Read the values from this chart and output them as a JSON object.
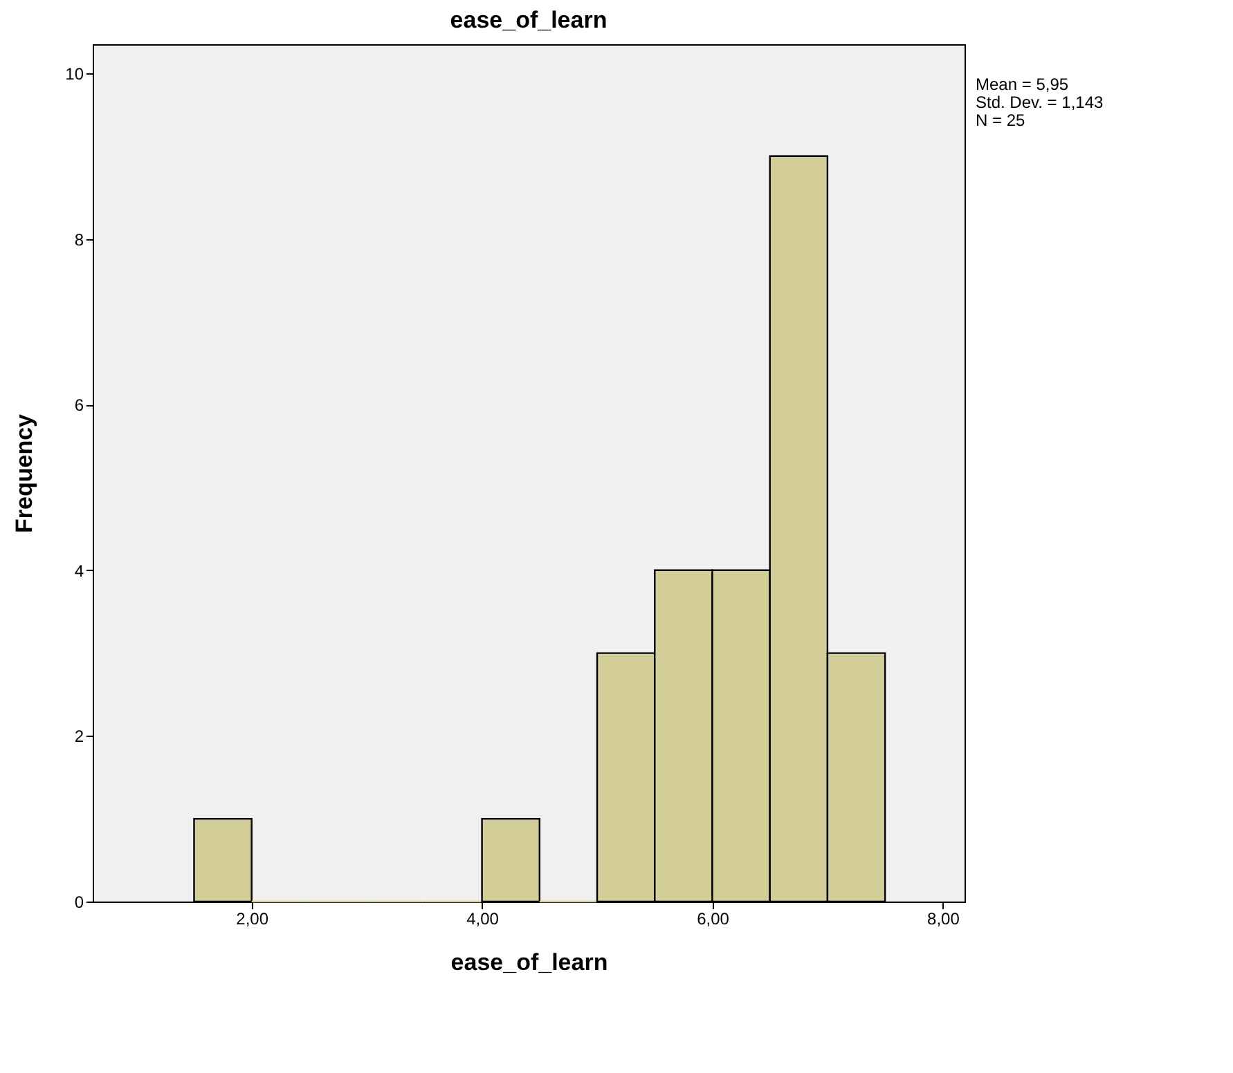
{
  "chart_data": {
    "type": "histogram",
    "title": "ease_of_learn",
    "xlabel": "ease_of_learn",
    "ylabel": "Frequency",
    "bins": [
      1.5,
      2,
      2.5,
      3,
      3.5,
      4,
      4.5,
      5,
      5.5,
      6,
      6.5,
      7,
      7.5
    ],
    "values": [
      1,
      0,
      0,
      0,
      0,
      1,
      0,
      3,
      4,
      4,
      9,
      3
    ],
    "color": "#d3ce98",
    "xlim": [
      0.62,
      8.19
    ],
    "xticks": [
      {
        "value": 2,
        "label": "2,00"
      },
      {
        "value": 4,
        "label": "4,00"
      },
      {
        "value": 6,
        "label": "6,00"
      },
      {
        "value": 8,
        "label": "8,00"
      }
    ],
    "ylim": [
      0,
      10.35
    ],
    "yticks": [
      0,
      2,
      4,
      6,
      8,
      10
    ],
    "grid": false,
    "annotations": [
      "Mean = 5,95",
      "Std. Dev. = 1,143",
      "N = 25"
    ]
  }
}
